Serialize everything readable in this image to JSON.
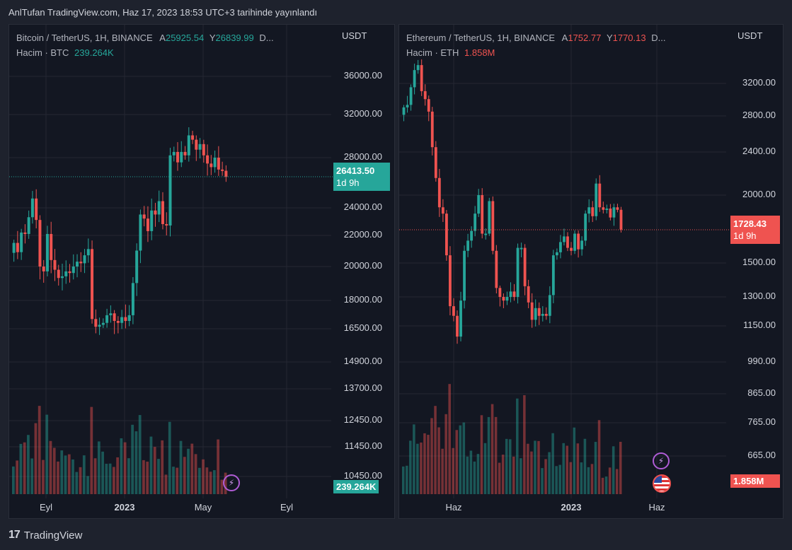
{
  "header": {
    "title": "AnlTufan TradingView.com, Haz 17, 2023 18:53 UTC+3 tarihinde yayınlandı"
  },
  "colors": {
    "up": "#26a69a",
    "down": "#ef5350",
    "background": "#131722",
    "grid": "#242733"
  },
  "left_chart": {
    "symbol": "Bitcoin / TetherUS, 1H, BINANCE",
    "low_label": "A",
    "low_value": "25925.54",
    "high_label": "Y",
    "high_value": "26839.99",
    "more": "D...",
    "volume_label": "Hacim · BTC",
    "volume_value": "239.264K",
    "currency": "USDT",
    "last_price": "26413.50",
    "countdown": "1d 9h",
    "volume_box": "239.264K",
    "y_ticks": [
      "36000.00",
      "32000.00",
      "28000.00",
      "26413.50",
      "24000.00",
      "22000.00",
      "20000.00",
      "18000.00",
      "16500.00",
      "14900.00",
      "13700.00",
      "12450.00",
      "11450.00",
      "10450.00"
    ],
    "x_ticks": [
      "Eyl",
      "2023",
      "May",
      "Eyl"
    ],
    "badge_icon": "lightning-icon"
  },
  "right_chart": {
    "symbol": "Ethereum / TetherUS, 1H, BINANCE",
    "low_label": "A",
    "low_value": "1752.77",
    "high_label": "Y",
    "high_value": "1770.13",
    "more": "D...",
    "volume_label": "Hacim · ETH",
    "volume_value": "1.858M",
    "currency": "USDT",
    "last_price": "1728.43",
    "countdown": "1d 9h",
    "volume_box": "1.858M",
    "y_ticks": [
      "3200.00",
      "2800.00",
      "2400.00",
      "2000.00",
      "1728.43",
      "1500.00",
      "1300.00",
      "1150.00",
      "990.00",
      "865.00",
      "765.00",
      "665.00"
    ],
    "x_ticks": [
      "Haz",
      "2023",
      "Haz"
    ],
    "badge_icon": "lightning-icon",
    "flag_icon": "us-flag-icon"
  },
  "footer": {
    "brand": "TradingView",
    "logo_icon": "tradingview-logo-icon"
  },
  "chart_data": [
    {
      "type": "candlestick",
      "title": "Bitcoin / TetherUS, 1H, BINANCE",
      "ylabel": "USDT",
      "ylim": [
        10450,
        36000
      ],
      "x_ticks": [
        "Eyl",
        "2023",
        "May",
        "Eyl"
      ],
      "last": 26413.5,
      "closes": [
        21500,
        20900,
        22200,
        22100,
        23300,
        24700,
        23100,
        20000,
        19700,
        22100,
        20400,
        19800,
        19300,
        19400,
        19700,
        19600,
        20000,
        20300,
        20200,
        20700,
        21100,
        17000,
        16600,
        16700,
        16800,
        17200,
        17300,
        16900,
        16800,
        17100,
        16900,
        17200,
        19000,
        21000,
        23500,
        23200,
        22300,
        23800,
        23500,
        24500,
        22800,
        22700,
        28200,
        28500,
        27600,
        28500,
        28200,
        30000,
        29600,
        28700,
        29200,
        28200,
        27500,
        27200,
        28000,
        27000,
        26900,
        26400
      ],
      "volume_peak_label": "239.264K"
    },
    {
      "type": "candlestick",
      "title": "Ethereum / TetherUS, 1H, BINANCE",
      "ylabel": "USDT",
      "ylim": [
        665,
        3200
      ],
      "x_ticks": [
        "Haz",
        "2023",
        "Haz"
      ],
      "last": 1728.43,
      "closes": [
        2900,
        2930,
        3150,
        3380,
        3450,
        3100,
        3000,
        2850,
        2450,
        2150,
        1900,
        1850,
        1550,
        1250,
        1200,
        1100,
        1280,
        1580,
        1650,
        1720,
        1850,
        2000,
        1700,
        1700,
        1950,
        1580,
        1350,
        1300,
        1280,
        1300,
        1330,
        1300,
        1600,
        1600,
        1360,
        1270,
        1180,
        1240,
        1200,
        1210,
        1200,
        1310,
        1550,
        1570,
        1640,
        1680,
        1600,
        1580,
        1700,
        1590,
        1650,
        1850,
        1900,
        1830,
        2100,
        1900,
        1880,
        1890,
        1820,
        1900,
        1880,
        1730
      ],
      "volume_peak_label": "1.858M"
    }
  ]
}
